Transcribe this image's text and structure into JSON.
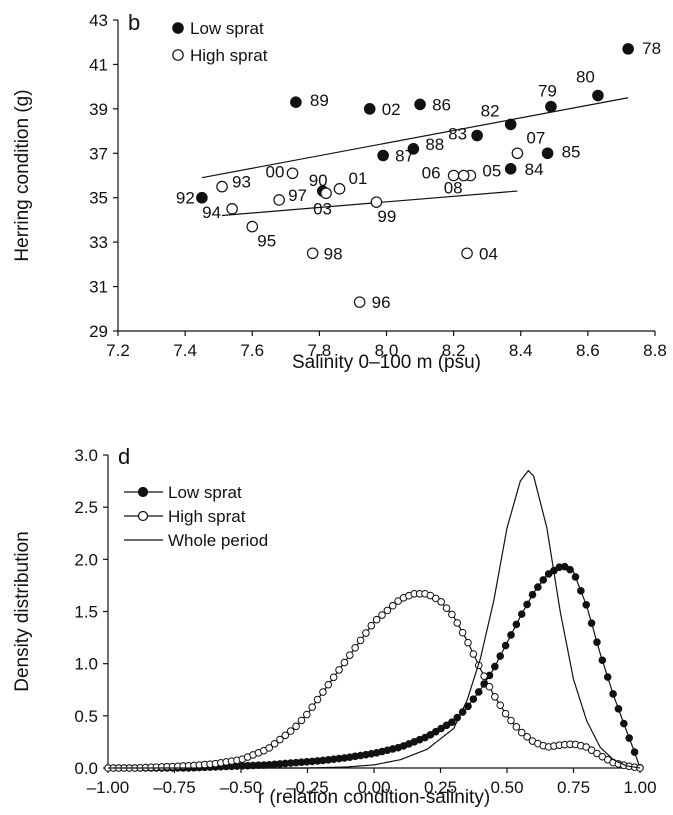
{
  "chart_data": [
    {
      "type": "scatter",
      "panel_label": "b",
      "xlabel": "Salinity 0–100 m (psu)",
      "ylabel": "Herring condition (g)",
      "xlim": [
        7.2,
        8.8
      ],
      "ylim": [
        29,
        43
      ],
      "xticks": [
        "7.2",
        "7.4",
        "7.6",
        "7.8",
        "8.0",
        "8.2",
        "8.4",
        "8.6",
        "8.8"
      ],
      "yticks": [
        "29",
        "31",
        "33",
        "35",
        "37",
        "39",
        "41",
        "43"
      ],
      "grid": false,
      "legend_position": "top-left",
      "series": [
        {
          "name": "Low sprat",
          "marker": "filled",
          "points": [
            {
              "label": "78",
              "x": 8.72,
              "y": 41.7
            },
            {
              "label": "79",
              "x": 8.49,
              "y": 39.1
            },
            {
              "label": "80",
              "x": 8.63,
              "y": 39.6
            },
            {
              "label": "82",
              "x": 8.37,
              "y": 38.3
            },
            {
              "label": "83",
              "x": 8.27,
              "y": 37.8
            },
            {
              "label": "84",
              "x": 8.37,
              "y": 36.3
            },
            {
              "label": "85",
              "x": 8.48,
              "y": 37.0
            },
            {
              "label": "86",
              "x": 8.1,
              "y": 39.2
            },
            {
              "label": "87",
              "x": 7.99,
              "y": 36.9
            },
            {
              "label": "88",
              "x": 8.08,
              "y": 37.2
            },
            {
              "label": "89",
              "x": 7.73,
              "y": 39.3
            },
            {
              "label": "90",
              "x": 7.81,
              "y": 35.3
            },
            {
              "label": "92",
              "x": 7.45,
              "y": 35.0
            },
            {
              "label": "02",
              "x": 7.95,
              "y": 39.0
            }
          ],
          "trendline": {
            "x": [
              7.45,
              8.72
            ],
            "y": [
              35.9,
              39.5
            ]
          }
        },
        {
          "name": "High sprat",
          "marker": "open",
          "points": [
            {
              "label": "93",
              "x": 7.51,
              "y": 35.5
            },
            {
              "label": "94",
              "x": 7.54,
              "y": 34.5
            },
            {
              "label": "95",
              "x": 7.6,
              "y": 33.7
            },
            {
              "label": "96",
              "x": 7.92,
              "y": 30.3
            },
            {
              "label": "97",
              "x": 7.68,
              "y": 34.9
            },
            {
              "label": "98",
              "x": 7.78,
              "y": 32.5
            },
            {
              "label": "99",
              "x": 7.97,
              "y": 34.8
            },
            {
              "label": "00",
              "x": 7.72,
              "y": 36.1
            },
            {
              "label": "01",
              "x": 7.86,
              "y": 35.4
            },
            {
              "label": "03",
              "x": 7.82,
              "y": 35.2
            },
            {
              "label": "04",
              "x": 8.24,
              "y": 32.5
            },
            {
              "label": "05",
              "x": 8.25,
              "y": 36.0
            },
            {
              "label": "06",
              "x": 8.2,
              "y": 36.0
            },
            {
              "label": "07",
              "x": 8.39,
              "y": 37.0
            },
            {
              "label": "08",
              "x": 8.23,
              "y": 36.0
            }
          ],
          "trendline": {
            "x": [
              7.51,
              8.39
            ],
            "y": [
              34.2,
              35.3
            ]
          }
        }
      ]
    },
    {
      "type": "line",
      "panel_label": "d",
      "xlabel": "r (relation condition-salinity)",
      "ylabel": "Density distribution",
      "xlim": [
        -1.0,
        1.0
      ],
      "ylim": [
        0,
        3.0
      ],
      "xticks": [
        "–1.00",
        "–0.75",
        "–0.50",
        "–0.25",
        "0.00",
        "0.25",
        "0.50",
        "0.75",
        "1.00"
      ],
      "yticks": [
        "0.0",
        "0.5",
        "1.0",
        "1.5",
        "2.0",
        "2.5",
        "3.0"
      ],
      "grid": false,
      "legend_position": "top-left",
      "series": [
        {
          "name": "Low sprat",
          "marker": "filled",
          "x": [
            -1.0,
            -0.9,
            -0.8,
            -0.7,
            -0.6,
            -0.5,
            -0.4,
            -0.3,
            -0.2,
            -0.1,
            0.0,
            0.1,
            0.2,
            0.3,
            0.35,
            0.4,
            0.45,
            0.5,
            0.55,
            0.6,
            0.65,
            0.7,
            0.72,
            0.75,
            0.8,
            0.85,
            0.9,
            0.95,
            0.98,
            1.0
          ],
          "y": [
            0.0,
            0.0,
            0.0,
            0.0,
            0.01,
            0.02,
            0.03,
            0.05,
            0.07,
            0.1,
            0.14,
            0.2,
            0.3,
            0.45,
            0.58,
            0.75,
            0.95,
            1.2,
            1.45,
            1.68,
            1.85,
            1.93,
            1.93,
            1.88,
            1.55,
            1.1,
            0.7,
            0.35,
            0.15,
            0.0
          ]
        },
        {
          "name": "High sprat",
          "marker": "open",
          "x": [
            -1.0,
            -0.9,
            -0.8,
            -0.7,
            -0.6,
            -0.5,
            -0.4,
            -0.3,
            -0.25,
            -0.2,
            -0.1,
            0.0,
            0.1,
            0.15,
            0.2,
            0.25,
            0.3,
            0.35,
            0.4,
            0.45,
            0.5,
            0.55,
            0.6,
            0.65,
            0.7,
            0.75,
            0.8,
            0.85,
            0.9,
            0.95,
            1.0
          ],
          "y": [
            0.0,
            0.0,
            0.01,
            0.02,
            0.04,
            0.08,
            0.18,
            0.38,
            0.52,
            0.7,
            1.05,
            1.4,
            1.62,
            1.67,
            1.67,
            1.6,
            1.45,
            1.22,
            0.95,
            0.7,
            0.5,
            0.35,
            0.25,
            0.2,
            0.22,
            0.23,
            0.2,
            0.12,
            0.05,
            0.02,
            0.0
          ]
        },
        {
          "name": "Whole period",
          "marker": "none",
          "x": [
            -1.0,
            -0.25,
            -0.1,
            0.0,
            0.1,
            0.2,
            0.3,
            0.35,
            0.4,
            0.45,
            0.5,
            0.55,
            0.58,
            0.6,
            0.65,
            0.7,
            0.75,
            0.8,
            0.85,
            0.9,
            0.95,
            1.0
          ],
          "y": [
            0.0,
            0.0,
            0.01,
            0.03,
            0.08,
            0.18,
            0.38,
            0.65,
            1.05,
            1.6,
            2.3,
            2.75,
            2.85,
            2.8,
            2.3,
            1.5,
            0.85,
            0.45,
            0.2,
            0.08,
            0.02,
            0.0
          ]
        }
      ]
    }
  ]
}
